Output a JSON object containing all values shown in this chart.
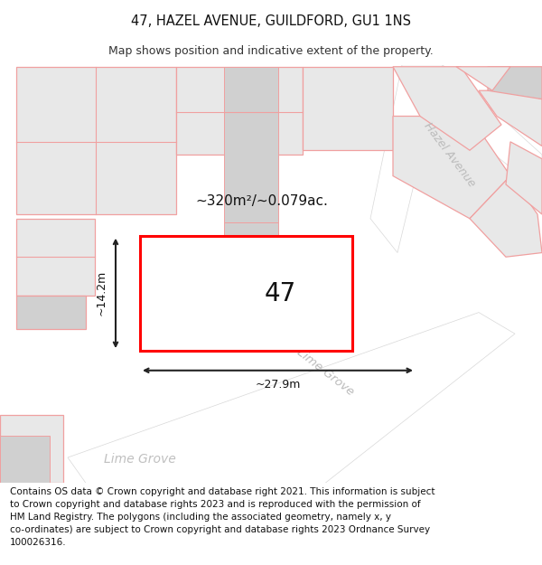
{
  "title": "47, HAZEL AVENUE, GUILDFORD, GU1 1NS",
  "subtitle": "Map shows position and indicative extent of the property.",
  "footer": "Contains OS data © Crown copyright and database right 2021. This information is subject\nto Crown copyright and database rights 2023 and is reproduced with the permission of\nHM Land Registry. The polygons (including the associated geometry, namely x, y\nco-ordinates) are subject to Crown copyright and database rights 2023 Ordnance Survey\n100026316.",
  "map_bg": "#f9f9f9",
  "property_color": "#ff0000",
  "neighbor_edge": "#f0a0a0",
  "neighbor_fill": "#e8e8e8",
  "neighbor_fill_dark": "#d0d0d0",
  "area_label": "~320m²/~0.079ac.",
  "number_label": "47",
  "width_label": "~27.9m",
  "height_label": "~14.2m",
  "title_fontsize": 10.5,
  "subtitle_fontsize": 9,
  "footer_fontsize": 7.5
}
